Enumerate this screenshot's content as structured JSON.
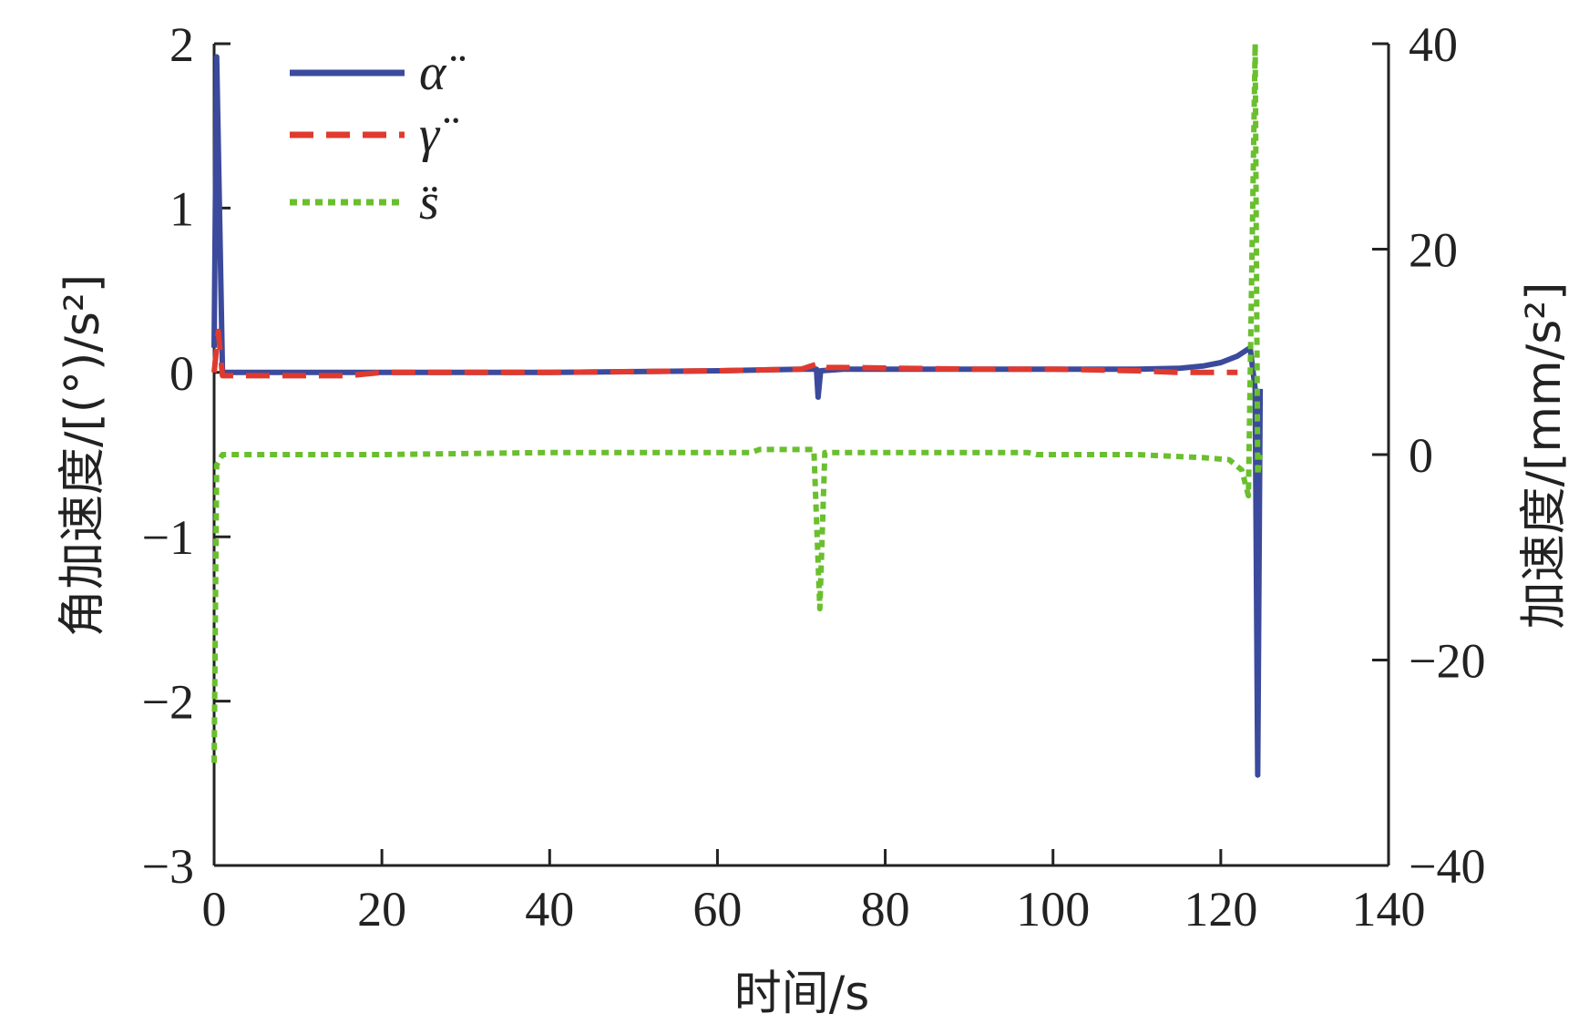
{
  "chart_data": {
    "type": "line",
    "xlabel": "时间/s",
    "ylabel_left": "角加速度/[(°)/s²]",
    "ylabel_right": "加速度/[mm/s²]",
    "xlim": [
      0,
      140
    ],
    "ylim_left": [
      -3,
      2
    ],
    "ylim_right": [
      -40,
      40
    ],
    "x_ticks": [
      0,
      20,
      40,
      60,
      80,
      100,
      120,
      140
    ],
    "y_ticks_left": [
      -3,
      -2,
      -1,
      0,
      1,
      2
    ],
    "y_ticks_right": [
      -40,
      -20,
      0,
      20,
      40
    ],
    "x_tick_labels": [
      "0",
      "20",
      "40",
      "60",
      "80",
      "100",
      "120",
      "140"
    ],
    "y_tick_labels_left": [
      "−3",
      "−2",
      "−1",
      "0",
      "1",
      "2"
    ],
    "y_tick_labels_right": [
      "−40",
      "−20",
      "0",
      "20",
      "40"
    ],
    "grid": false,
    "legend_position": "top-left",
    "series": [
      {
        "name": "α̈",
        "axis": "left",
        "color": "#3b4a9c",
        "style": "solid",
        "points": [
          [
            0.0,
            0.15
          ],
          [
            0.3,
            1.92
          ],
          [
            1.0,
            0.0
          ],
          [
            10,
            0.0
          ],
          [
            20,
            0.0
          ],
          [
            40,
            0.0
          ],
          [
            60,
            0.01
          ],
          [
            70,
            0.02
          ],
          [
            71.8,
            0.02
          ],
          [
            72.0,
            -0.15
          ],
          [
            72.3,
            0.01
          ],
          [
            75,
            0.02
          ],
          [
            90,
            0.02
          ],
          [
            100,
            0.02
          ],
          [
            110,
            0.02
          ],
          [
            115,
            0.025
          ],
          [
            118,
            0.04
          ],
          [
            120,
            0.06
          ],
          [
            122,
            0.1
          ],
          [
            123.5,
            0.15
          ],
          [
            124.1,
            -0.1
          ],
          [
            124.4,
            -2.45
          ],
          [
            124.7,
            -0.1
          ]
        ]
      },
      {
        "name": "γ̈",
        "axis": "left",
        "color": "#e03a2f",
        "style": "dashed",
        "points": [
          [
            0.0,
            0.0
          ],
          [
            0.5,
            0.25
          ],
          [
            1.0,
            -0.02
          ],
          [
            10,
            -0.02
          ],
          [
            16,
            -0.02
          ],
          [
            20,
            0.0
          ],
          [
            40,
            0.0
          ],
          [
            60,
            0.01
          ],
          [
            70,
            0.02
          ],
          [
            71.8,
            0.05
          ],
          [
            72.3,
            0.06
          ],
          [
            73.0,
            0.03
          ],
          [
            75,
            0.03
          ],
          [
            90,
            0.02
          ],
          [
            100,
            0.02
          ],
          [
            110,
            0.01
          ],
          [
            115,
            0.0
          ],
          [
            122,
            0.0
          ]
        ]
      },
      {
        "name": "s̈",
        "axis": "right",
        "color": "#6abf2e",
        "style": "dotted",
        "points": [
          [
            0.0,
            -30
          ],
          [
            0.3,
            -1
          ],
          [
            1.0,
            0.0
          ],
          [
            20,
            0.0
          ],
          [
            40,
            0.2
          ],
          [
            64,
            0.2
          ],
          [
            65,
            0.5
          ],
          [
            71.5,
            0.5
          ],
          [
            72.2,
            -15
          ],
          [
            72.8,
            0.2
          ],
          [
            80,
            0.2
          ],
          [
            97,
            0.2
          ],
          [
            98,
            0.0
          ],
          [
            110,
            0.0
          ],
          [
            118,
            -0.3
          ],
          [
            121,
            -0.5
          ],
          [
            122.5,
            -1.5
          ],
          [
            123.3,
            -4
          ],
          [
            124.1,
            40
          ],
          [
            124.4,
            -2
          ],
          [
            124.7,
            0
          ]
        ]
      }
    ]
  }
}
